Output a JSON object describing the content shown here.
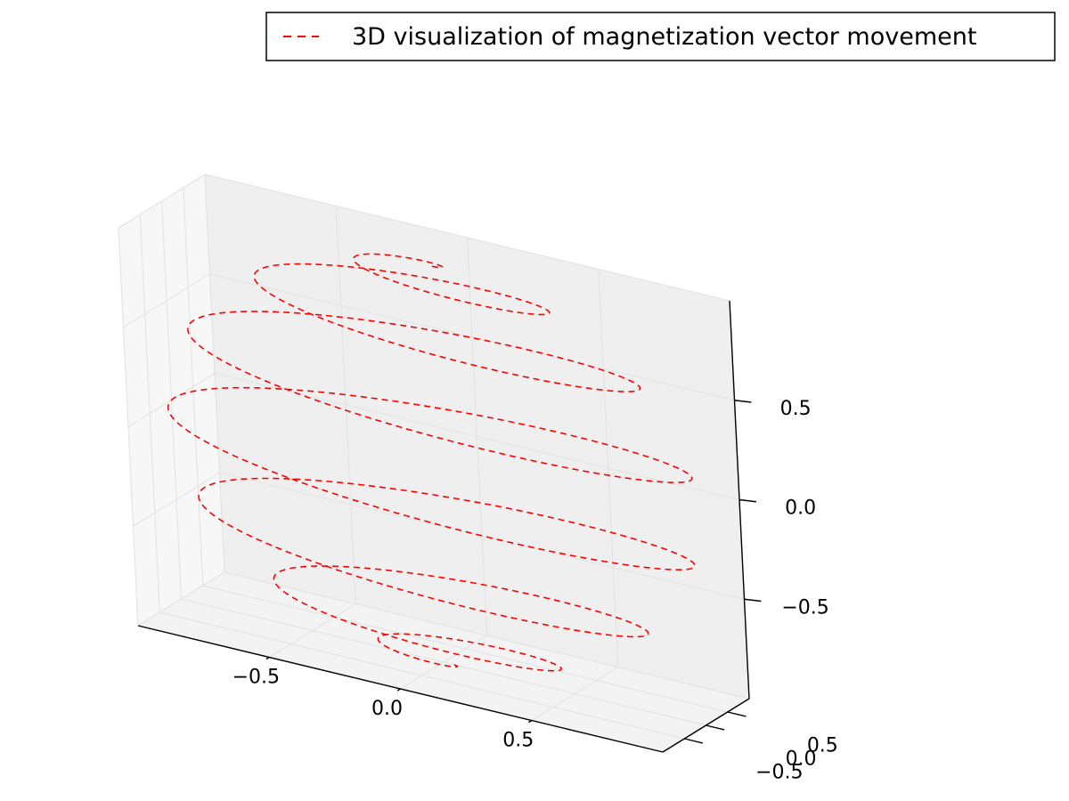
{
  "chart_data": {
    "type": "line",
    "projection": "3d",
    "curve": "damped spiral on unit sphere (azimuth increases while polar angle sweeps from top to bottom)",
    "series": [
      {
        "name": "3D visualization of magnetization vector movement",
        "color": "#ff0000",
        "line_style": "dashed",
        "turns": 7,
        "x_range": [
          -1,
          1
        ],
        "y_range": [
          -1,
          1
        ],
        "z_range": [
          -1,
          1
        ]
      }
    ],
    "axes": {
      "x": {
        "ticks": [
          -0.5,
          0.0,
          0.5
        ],
        "tick_labels": [
          "−0.5",
          "0.0",
          "0.5"
        ],
        "lim": [
          -1,
          1
        ]
      },
      "y": {
        "ticks": [
          -0.5,
          0.0,
          0.5
        ],
        "tick_labels": [
          "−0.5",
          "0.0",
          "0.5"
        ],
        "lim": [
          -1,
          1
        ]
      },
      "z": {
        "ticks": [
          -0.5,
          0.0,
          0.5
        ],
        "tick_labels": [
          "−0.5",
          "0.0",
          "0.5"
        ],
        "lim": [
          -1,
          1
        ]
      }
    },
    "grid": true,
    "legend_position": "top-right",
    "pane_color": "#f2f2f2",
    "grid_color": "#e4e4e4"
  }
}
